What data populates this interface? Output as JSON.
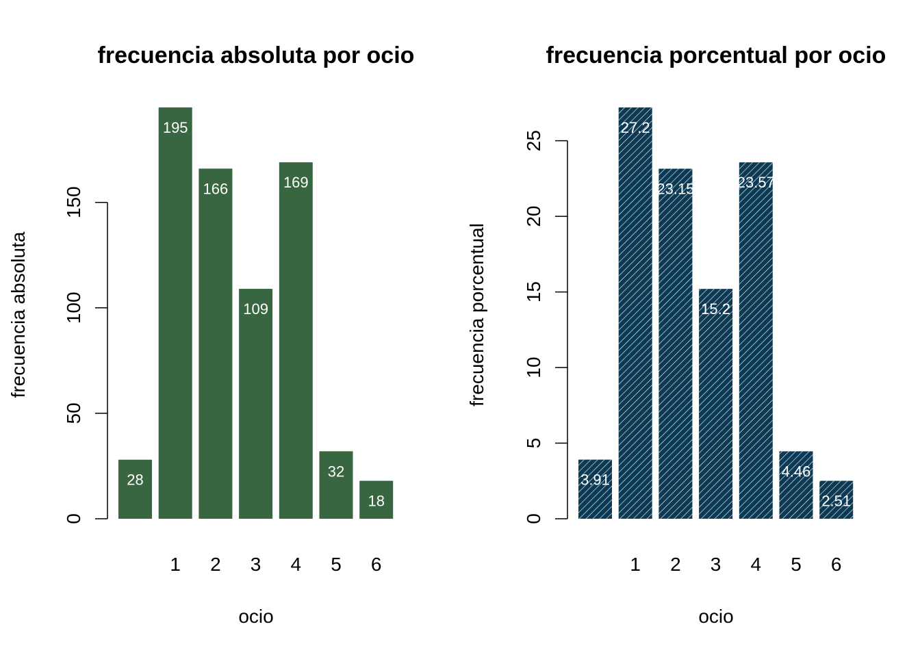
{
  "chart_data": [
    {
      "type": "bar",
      "title": "frecuencia absoluta por ocio",
      "xlabel": "ocio",
      "ylabel": "frecuencia absoluta",
      "categories": [
        "",
        "1",
        "2",
        "3",
        "4",
        "5",
        "6"
      ],
      "values": [
        28,
        195,
        166,
        109,
        169,
        32,
        18
      ],
      "data_labels": [
        "28",
        "195",
        "166",
        "109",
        "169",
        "32",
        "18"
      ],
      "y_ticks": [
        "0",
        "50",
        "100",
        "150"
      ],
      "ylim": [
        0,
        195
      ],
      "color": "#386641",
      "hatched": false,
      "grid": false,
      "legend": "none"
    },
    {
      "type": "bar",
      "title": "frecuencia porcentual por ocio",
      "xlabel": "ocio",
      "ylabel": "frecuencia porcentual",
      "categories": [
        "",
        "1",
        "2",
        "3",
        "4",
        "5",
        "6"
      ],
      "values": [
        3.91,
        27.2,
        23.15,
        15.2,
        23.57,
        4.46,
        2.51
      ],
      "data_labels": [
        "3.91",
        "27.2",
        "23.15",
        "15.2",
        "23.57",
        "4.46",
        "2.51"
      ],
      "y_ticks": [
        "0",
        "5",
        "10",
        "15",
        "20",
        "25"
      ],
      "ylim": [
        0,
        27.2
      ],
      "color": "#0c3a55",
      "hatched": true,
      "grid": false,
      "legend": "none"
    }
  ]
}
